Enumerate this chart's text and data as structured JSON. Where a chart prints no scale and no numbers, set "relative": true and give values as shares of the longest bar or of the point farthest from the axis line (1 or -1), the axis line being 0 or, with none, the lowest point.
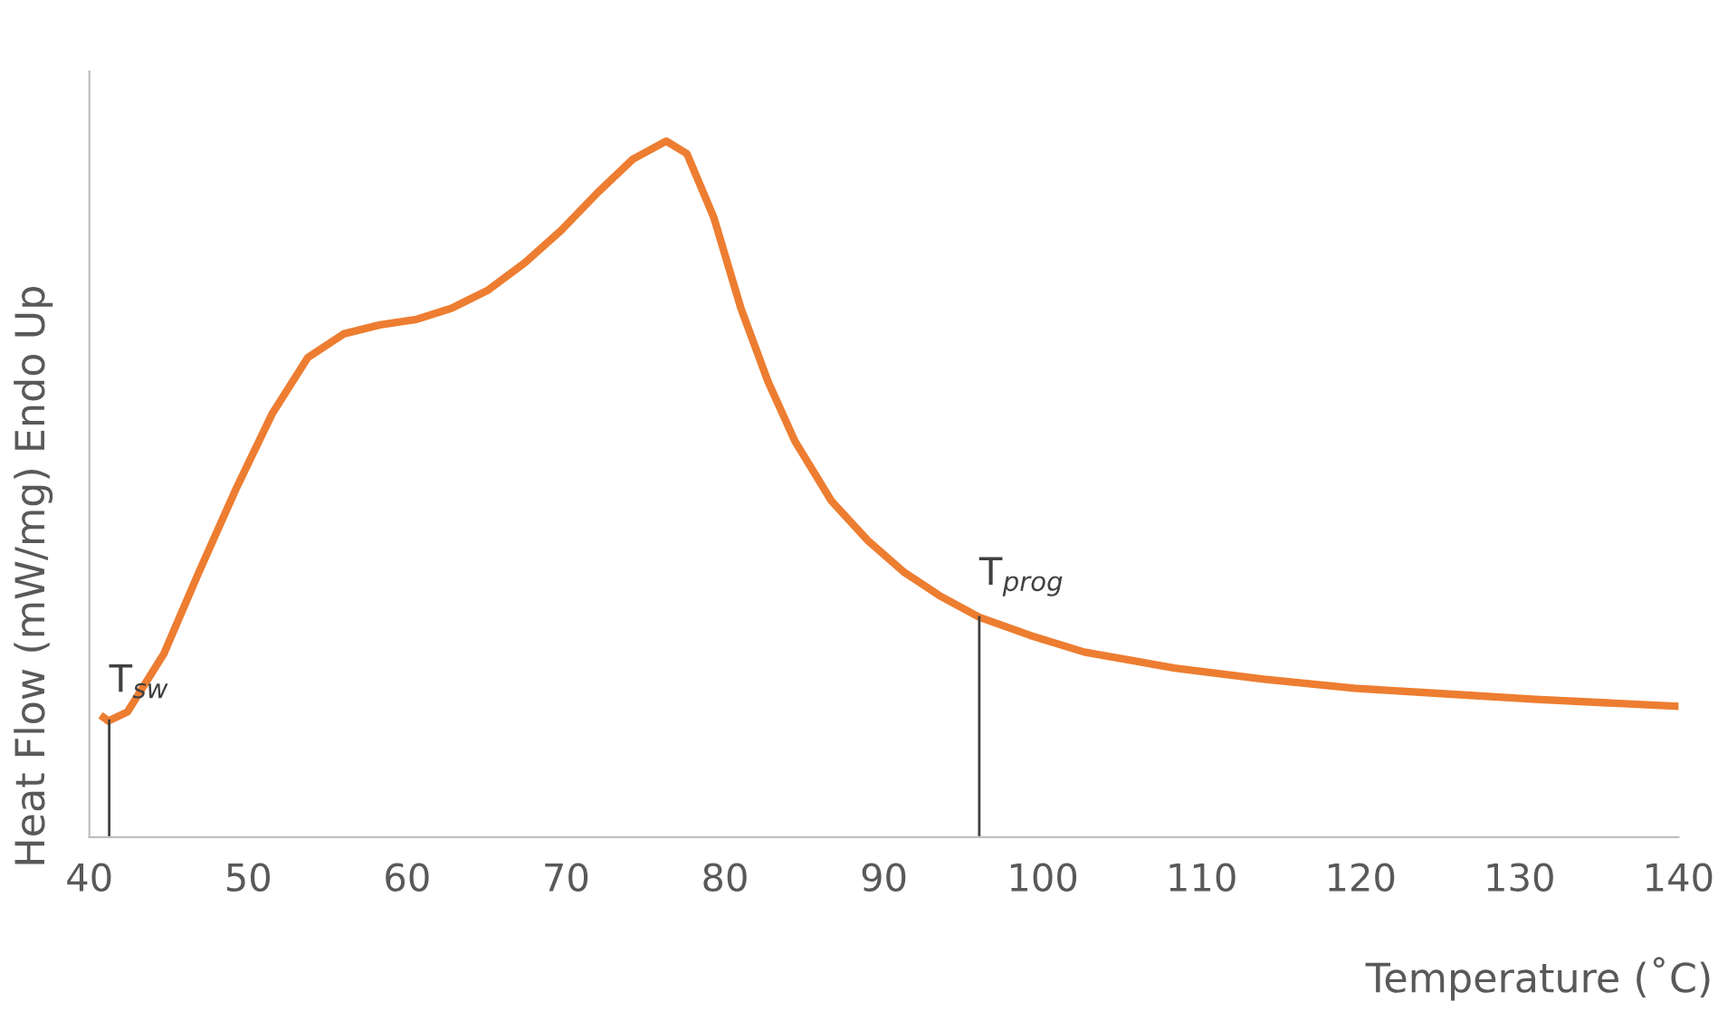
{
  "chart_data": {
    "type": "line",
    "xlabel": "Temperature (˚C)",
    "ylabel": "Heat Flow (mW/mg) Endo Up",
    "relative": true,
    "tick_labels": "x",
    "grid": false,
    "legend": false,
    "xlim": [
      40,
      140
    ],
    "xticks": [
      40,
      50,
      60,
      70,
      80,
      90,
      100,
      110,
      120,
      130,
      140
    ],
    "series": [
      {
        "color": "#ed7d31",
        "x": [
          40.9,
          41.2,
          42.4,
          44.7,
          46.9,
          49.2,
          51.5,
          53.75,
          56.0,
          58.3,
          60.6,
          62.8,
          65.1,
          67.4,
          69.7,
          71.9,
          74.2,
          76.3,
          77.6,
          79.3,
          81.0,
          82.7,
          84.4,
          86.7,
          89.0,
          91.25,
          93.5,
          96.0,
          99.2,
          102.6,
          108.3,
          113.9,
          119.6,
          125.3,
          131.0,
          140
        ],
        "values": [
          0.172,
          0.167,
          0.18,
          0.264,
          0.381,
          0.499,
          0.608,
          0.689,
          0.723,
          0.736,
          0.744,
          0.76,
          0.786,
          0.825,
          0.872,
          0.924,
          0.974,
          1.0,
          0.982,
          0.89,
          0.76,
          0.655,
          0.569,
          0.483,
          0.426,
          0.381,
          0.347,
          0.316,
          0.29,
          0.266,
          0.243,
          0.227,
          0.214,
          0.206,
          0.198,
          0.188
        ]
      }
    ],
    "ref_lines": [
      {
        "axis": "x",
        "value": 41.25,
        "label": "T$_{sw}$",
        "color": "#404040"
      },
      {
        "axis": "x",
        "value": 96.0,
        "label": "T$_{prog}$",
        "color": "#404040"
      }
    ]
  }
}
